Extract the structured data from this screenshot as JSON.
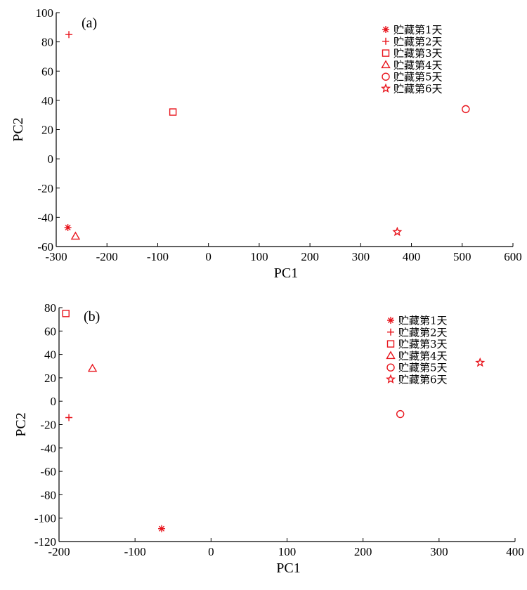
{
  "chart_data": [
    {
      "type": "scatter",
      "panel_label": "(a)",
      "xlabel": "PC1",
      "ylabel": "PC2",
      "xlim": [
        -300,
        600
      ],
      "ylim": [
        -60,
        100
      ],
      "xticks": [
        -300,
        -200,
        -100,
        0,
        100,
        200,
        300,
        400,
        500,
        600
      ],
      "yticks": [
        -60,
        -40,
        -20,
        0,
        20,
        40,
        60,
        80,
        100
      ],
      "legend_position": "top-right",
      "marker_color": "#e8141c",
      "series": [
        {
          "name": "贮藏第1天",
          "marker": "asterisk",
          "x": -277,
          "y": -47
        },
        {
          "name": "贮藏第2天",
          "marker": "plus",
          "x": -275,
          "y": 85
        },
        {
          "name": "贮藏第3天",
          "marker": "square",
          "x": -70,
          "y": 32
        },
        {
          "name": "贮藏第4天",
          "marker": "triangle",
          "x": -262,
          "y": -53
        },
        {
          "name": "贮藏第5天",
          "marker": "circle",
          "x": 507,
          "y": 34
        },
        {
          "name": "贮藏第6天",
          "marker": "star",
          "x": 372,
          "y": -50
        }
      ]
    },
    {
      "type": "scatter",
      "panel_label": "(b)",
      "xlabel": "PC1",
      "ylabel": "PC2",
      "xlim": [
        -200,
        400
      ],
      "ylim": [
        -120,
        80
      ],
      "xticks": [
        -200,
        -100,
        0,
        100,
        200,
        300,
        400
      ],
      "yticks": [
        -120,
        -100,
        -80,
        -60,
        -40,
        -20,
        0,
        20,
        40,
        60,
        80
      ],
      "legend_position": "top-right",
      "marker_color": "#e8141c",
      "series": [
        {
          "name": "贮藏第1天",
          "marker": "asterisk",
          "x": -65,
          "y": -109
        },
        {
          "name": "贮藏第2天",
          "marker": "plus",
          "x": -187,
          "y": -14
        },
        {
          "name": "贮藏第3天",
          "marker": "square",
          "x": -191,
          "y": 75
        },
        {
          "name": "贮藏第4天",
          "marker": "triangle",
          "x": -156,
          "y": 28
        },
        {
          "name": "贮藏第5天",
          "marker": "circle",
          "x": 249,
          "y": -11
        },
        {
          "name": "贮藏第6天",
          "marker": "star",
          "x": 354,
          "y": 33
        }
      ]
    }
  ]
}
